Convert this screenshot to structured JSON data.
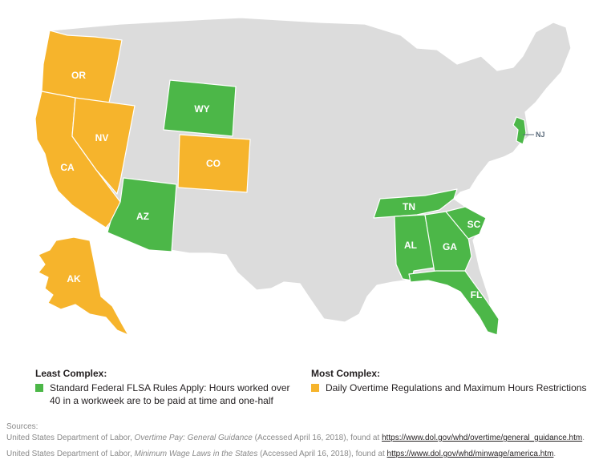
{
  "colors": {
    "least_complex": "#4cb748",
    "most_complex": "#f6b42c",
    "other_states": "#dcdcdc",
    "borders": "#ffffff"
  },
  "map": {
    "states": [
      {
        "abbr": "OR",
        "category": "most_complex"
      },
      {
        "abbr": "CA",
        "category": "most_complex"
      },
      {
        "abbr": "NV",
        "category": "most_complex"
      },
      {
        "abbr": "CO",
        "category": "most_complex"
      },
      {
        "abbr": "AK",
        "category": "most_complex"
      },
      {
        "abbr": "WY",
        "category": "least_complex"
      },
      {
        "abbr": "AZ",
        "category": "least_complex"
      },
      {
        "abbr": "TN",
        "category": "least_complex"
      },
      {
        "abbr": "AL",
        "category": "least_complex"
      },
      {
        "abbr": "GA",
        "category": "least_complex"
      },
      {
        "abbr": "SC",
        "category": "least_complex"
      },
      {
        "abbr": "FL",
        "category": "least_complex"
      },
      {
        "abbr": "NJ",
        "category": "least_complex"
      }
    ]
  },
  "legend": {
    "least": {
      "title": "Least Complex:",
      "text": "Standard Federal FLSA Rules Apply: Hours worked over 40 in a workweek are to be paid at time and one-half"
    },
    "most": {
      "title": "Most Complex:",
      "text": "Daily Overtime Regulations and Maximum Hours Restrictions"
    }
  },
  "sources": {
    "label": "Sources:",
    "items": [
      {
        "prefix": "United States Department of Labor, ",
        "title": "Overtime Pay: General Guidance",
        "middle": " (Accessed April 16, 2018), found at ",
        "link": "https://www.dol.gov/whd/overtime/general_guidance.htm",
        "suffix": "."
      },
      {
        "prefix": "United States Department of Labor, ",
        "title": "Minimum Wage Laws in the States",
        "middle": " (Accessed April 16, 2018), found at ",
        "link": "https://www.dol.gov/whd/minwage/america.htm",
        "suffix": "."
      }
    ]
  }
}
